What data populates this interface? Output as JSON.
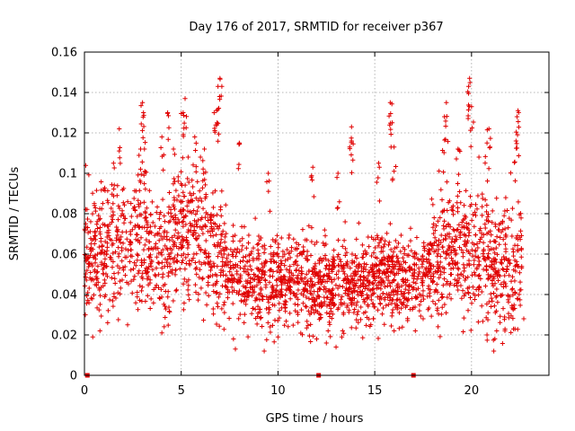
{
  "chart_data": {
    "type": "scatter",
    "title": "Day 176 of 2017, SRMTID for receiver p367",
    "xlabel": "GPS time / hours",
    "ylabel": "SRMTID / TECUs",
    "xlim": [
      0,
      24
    ],
    "ylim": [
      0,
      0.16
    ],
    "x_ticks": [
      0,
      5,
      10,
      15,
      20
    ],
    "x_tick_labels": [
      "0",
      "5",
      "10",
      "15",
      "20"
    ],
    "y_ticks": [
      0,
      0.02,
      0.04,
      0.06,
      0.08,
      0.1,
      0.12,
      0.14,
      0.16
    ],
    "y_tick_labels": [
      "0",
      "0.02",
      "0.04",
      "0.06",
      "0.08",
      "0.1",
      "0.12",
      "0.14",
      "0.16"
    ],
    "grid": true,
    "marker": "+",
    "color": "#e00000",
    "zero_markers_x": [
      0.15,
      12.1,
      17.0
    ],
    "trend": [
      [
        0.0,
        0.062
      ],
      [
        1.0,
        0.06
      ],
      [
        2.0,
        0.066
      ],
      [
        3.0,
        0.068
      ],
      [
        4.0,
        0.055
      ],
      [
        5.0,
        0.074
      ],
      [
        6.0,
        0.07
      ],
      [
        7.0,
        0.058
      ],
      [
        7.5,
        0.05
      ],
      [
        8.5,
        0.047
      ],
      [
        9.5,
        0.044
      ],
      [
        10.5,
        0.048
      ],
      [
        11.5,
        0.045
      ],
      [
        12.5,
        0.044
      ],
      [
        13.5,
        0.046
      ],
      [
        14.5,
        0.047
      ],
      [
        15.5,
        0.05
      ],
      [
        16.5,
        0.046
      ],
      [
        17.5,
        0.052
      ],
      [
        18.5,
        0.06
      ],
      [
        19.5,
        0.064
      ],
      [
        20.5,
        0.06
      ],
      [
        21.5,
        0.052
      ],
      [
        22.6,
        0.055
      ]
    ],
    "spikes": [
      [
        3.0,
        0.135
      ],
      [
        3.05,
        0.13
      ],
      [
        5.2,
        0.137
      ],
      [
        5.1,
        0.13
      ],
      [
        7.0,
        0.147
      ],
      [
        6.9,
        0.143
      ],
      [
        6.7,
        0.13
      ],
      [
        6.85,
        0.125
      ],
      [
        1.8,
        0.122
      ],
      [
        4.3,
        0.13
      ],
      [
        4.0,
        0.118
      ],
      [
        13.8,
        0.123
      ],
      [
        13.8,
        0.116
      ],
      [
        15.8,
        0.135
      ],
      [
        15.9,
        0.125
      ],
      [
        19.9,
        0.147
      ],
      [
        19.85,
        0.143
      ],
      [
        18.7,
        0.135
      ],
      [
        18.6,
        0.128
      ],
      [
        20.0,
        0.133
      ],
      [
        22.4,
        0.131
      ],
      [
        22.35,
        0.128
      ],
      [
        20.9,
        0.122
      ],
      [
        22.3,
        0.116
      ],
      [
        2.9,
        0.112
      ],
      [
        3.1,
        0.112
      ],
      [
        5.7,
        0.118
      ],
      [
        8.0,
        0.115
      ],
      [
        15.2,
        0.105
      ],
      [
        16.0,
        0.113
      ],
      [
        19.3,
        0.112
      ],
      [
        20.8,
        0.115
      ],
      [
        11.8,
        0.103
      ],
      [
        13.1,
        0.1
      ],
      [
        9.5,
        0.1
      ],
      [
        1.5,
        0.105
      ],
      [
        4.6,
        0.112
      ],
      [
        6.2,
        0.112
      ]
    ],
    "low_outliers": [
      [
        0.8,
        0.022
      ],
      [
        1.2,
        0.026
      ],
      [
        4.0,
        0.021
      ],
      [
        7.8,
        0.013
      ],
      [
        7.7,
        0.018
      ],
      [
        10.0,
        0.019
      ],
      [
        12.0,
        0.018
      ],
      [
        12.5,
        0.016
      ],
      [
        13.0,
        0.014
      ],
      [
        13.3,
        0.019
      ],
      [
        16.0,
        0.022
      ],
      [
        17.5,
        0.028
      ],
      [
        20.8,
        0.02
      ],
      [
        21.3,
        0.022
      ],
      [
        22.7,
        0.028
      ]
    ]
  }
}
